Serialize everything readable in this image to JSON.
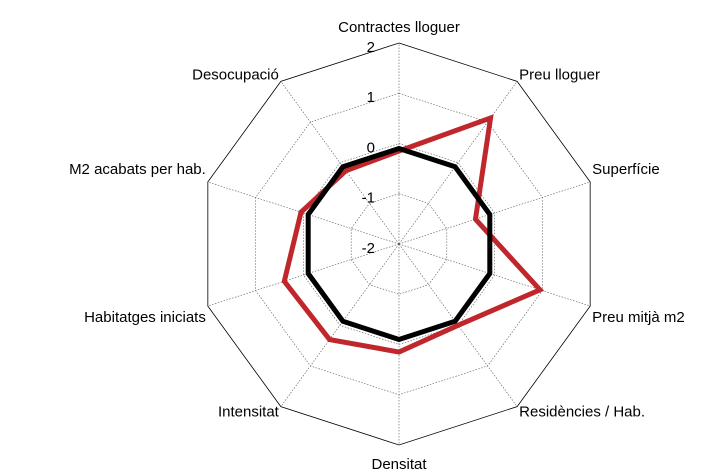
{
  "chart_data": {
    "type": "radar",
    "categories": [
      "Contractes lloguer",
      "Preu lloguer",
      "Superfície",
      "Preu mitjà m2",
      "Residències / Hab.",
      "Densitat",
      "Intensitat",
      "Habitatges iniciats",
      "M2 acabats per hab.",
      "Desocupació"
    ],
    "series": [
      {
        "color": "#c0272d",
        "values": [
          -0.15,
          1.1,
          -0.4,
          0.95,
          0,
          0.15,
          0.35,
          0.4,
          0.05,
          -0.2
        ]
      },
      {
        "color": "#000000",
        "values": [
          -0.1,
          -0.1,
          -0.1,
          -0.1,
          -0.1,
          -0.1,
          -0.1,
          -0.1,
          -0.1,
          -0.1
        ]
      }
    ],
    "ylim": [
      -2,
      2
    ],
    "yticks": [
      -2,
      -1,
      0,
      1,
      2
    ],
    "grid": true
  }
}
